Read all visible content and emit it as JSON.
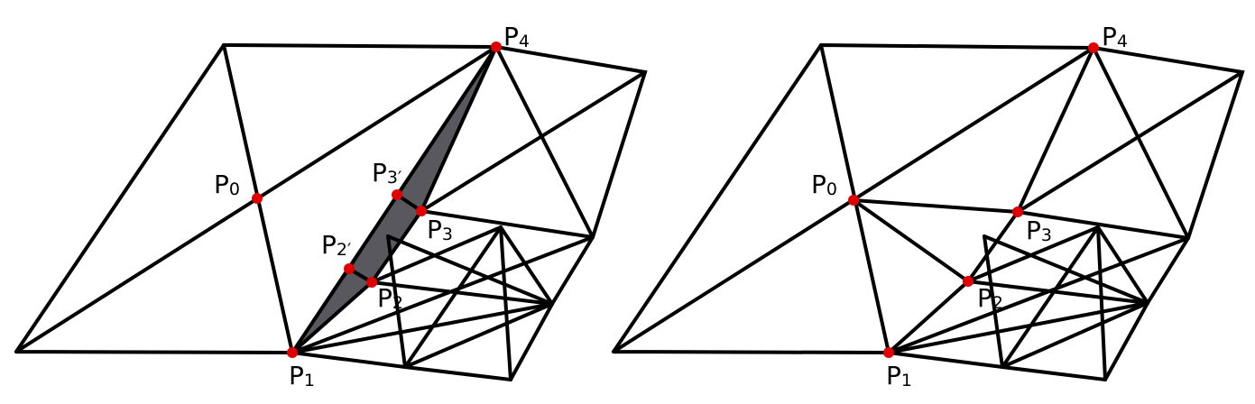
{
  "colors": {
    "stroke": "#000000",
    "point": "#e00000",
    "shade": "#58585e",
    "background": "#ffffff"
  },
  "left_panel": {
    "labels": {
      "P0": {
        "base": "P",
        "sub": "0"
      },
      "P1": {
        "base": "P",
        "sub": "1"
      },
      "P2": {
        "base": "P",
        "sub": "2"
      },
      "P3": {
        "base": "P",
        "sub": "3"
      },
      "P4": {
        "base": "P",
        "sub": "4"
      },
      "P2p": {
        "base": "P",
        "sub": "2′"
      },
      "P3p": {
        "base": "P",
        "sub": "3′"
      }
    }
  },
  "right_panel": {
    "labels": {
      "P0": {
        "base": "P",
        "sub": "0"
      },
      "P1": {
        "base": "P",
        "sub": "1"
      },
      "P2": {
        "base": "P",
        "sub": "2"
      },
      "P3": {
        "base": "P",
        "sub": "3"
      },
      "P4": {
        "base": "P",
        "sub": "4"
      }
    }
  }
}
